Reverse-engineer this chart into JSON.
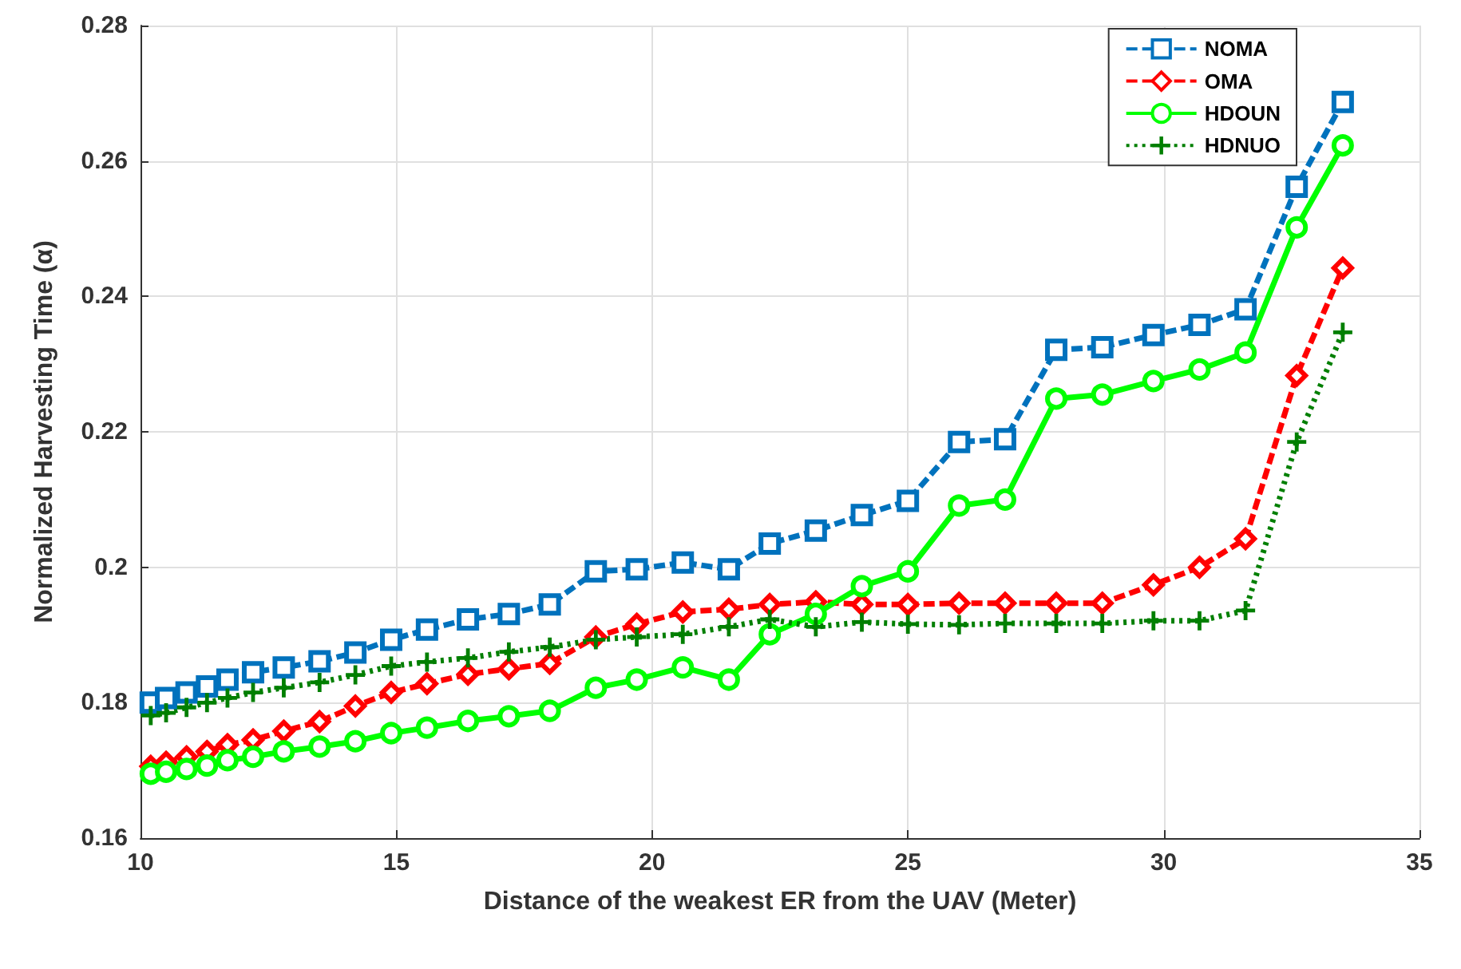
{
  "chart_data": {
    "type": "line",
    "xlabel": "Distance of the weakest ER from the UAV (Meter)",
    "ylabel": "Normalized Harvesting Time (α)",
    "x": [
      10.2,
      10.5,
      10.9,
      11.3,
      11.7,
      12.2,
      12.8,
      13.5,
      14.2,
      14.9,
      15.6,
      16.4,
      17.2,
      18.0,
      18.9,
      19.7,
      20.6,
      21.5,
      22.3,
      23.2,
      24.1,
      25.0,
      26.0,
      26.9,
      27.9,
      28.8,
      29.8,
      30.7,
      31.6,
      32.6,
      33.5
    ],
    "series": [
      {
        "name": "NOMA",
        "color": "#0072bd",
        "marker": "square",
        "line_style": "dashed",
        "values": [
          0.18,
          0.1807,
          0.1815,
          0.1824,
          0.1834,
          0.1845,
          0.1852,
          0.1861,
          0.1874,
          0.1893,
          0.1908,
          0.1923,
          0.1931,
          0.1945,
          0.1994,
          0.1997,
          0.2007,
          0.1997,
          0.2035,
          0.2054,
          0.2077,
          0.2098,
          0.2185,
          0.2189,
          0.2321,
          0.2325,
          0.2343,
          0.2358,
          0.2381,
          0.2562,
          0.2687
        ]
      },
      {
        "name": "OMA",
        "color": "#ff0000",
        "marker": "diamond",
        "line_style": "dashed",
        "values": [
          0.1706,
          0.1712,
          0.172,
          0.1728,
          0.1738,
          0.1745,
          0.1758,
          0.1772,
          0.1795,
          0.1815,
          0.1828,
          0.1842,
          0.185,
          0.1858,
          0.1897,
          0.1916,
          0.1934,
          0.1938,
          0.1945,
          0.1949,
          0.1945,
          0.1945,
          0.1947,
          0.1947,
          0.1947,
          0.1947,
          0.1974,
          0.2,
          0.2042,
          0.2283,
          0.2442
        ]
      },
      {
        "name": "HDOUN",
        "color": "#00ff00",
        "marker": "circle",
        "line_style": "solid",
        "values": [
          0.1695,
          0.1698,
          0.1702,
          0.1707,
          0.1715,
          0.172,
          0.1728,
          0.1735,
          0.1743,
          0.1755,
          0.1763,
          0.1773,
          0.178,
          0.1788,
          0.1822,
          0.1834,
          0.1852,
          0.1834,
          0.1901,
          0.1931,
          0.1972,
          0.1994,
          0.2091,
          0.21,
          0.2249,
          0.2255,
          0.2275,
          0.2292,
          0.2317,
          0.2502,
          0.2623
        ]
      },
      {
        "name": "HDNUO",
        "color": "#007f00",
        "marker": "cross",
        "line_style": "dotted",
        "values": [
          0.1781,
          0.1785,
          0.1793,
          0.18,
          0.1807,
          0.1815,
          0.1822,
          0.183,
          0.1841,
          0.1854,
          0.186,
          0.1866,
          0.1875,
          0.1882,
          0.1893,
          0.1897,
          0.1901,
          0.1912,
          0.1923,
          0.1912,
          0.1919,
          0.1916,
          0.1915,
          0.1917,
          0.1917,
          0.1917,
          0.1921,
          0.1921,
          0.1936,
          0.2185,
          0.2347
        ]
      }
    ],
    "xlim": [
      10,
      35
    ],
    "xticks": [
      10,
      15,
      20,
      25,
      30,
      35
    ],
    "ylim": [
      0.16,
      0.28
    ],
    "yticks": [
      0.16,
      0.18,
      0.2,
      0.22,
      0.24,
      0.26,
      0.28
    ],
    "grid": true,
    "legend": "top right"
  }
}
